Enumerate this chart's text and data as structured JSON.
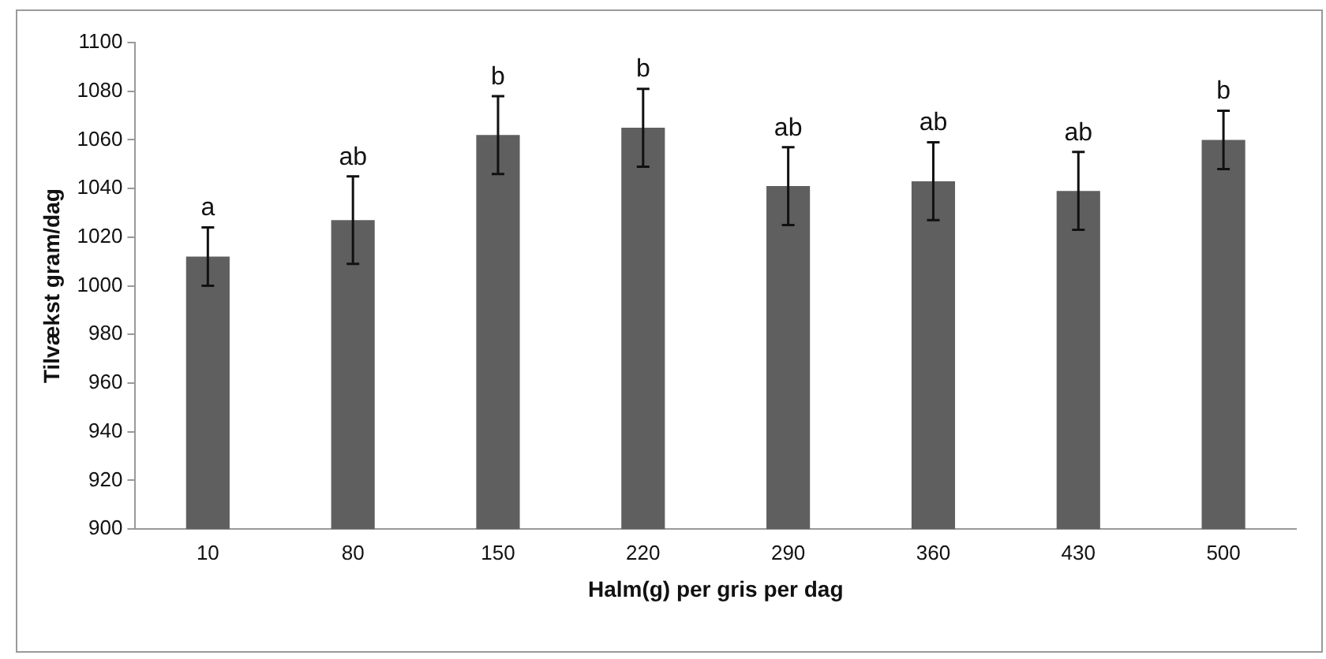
{
  "chart_data": {
    "type": "bar",
    "xlabel": "Halm(g) per gris per dag",
    "ylabel": "Tilvækst gram/dag",
    "categories": [
      "10",
      "80",
      "150",
      "220",
      "290",
      "360",
      "430",
      "500"
    ],
    "values": [
      1012,
      1027,
      1062,
      1065,
      1041,
      1043,
      1039,
      1060
    ],
    "errors": [
      [
        1000,
        1024
      ],
      [
        1009,
        1045
      ],
      [
        1046,
        1078
      ],
      [
        1049,
        1081
      ],
      [
        1025,
        1057
      ],
      [
        1027,
        1059
      ],
      [
        1023,
        1055
      ],
      [
        1048,
        1072
      ]
    ],
    "color": "#5f5f5f",
    "ylim": [
      900,
      1100
    ],
    "yticks": [
      900,
      920,
      940,
      960,
      980,
      1000,
      1020,
      1040,
      1060,
      1080,
      1100
    ],
    "grid": false,
    "legend": false,
    "annotations": [
      {
        "text": "a",
        "x": "10",
        "y": 1024
      },
      {
        "text": "ab",
        "x": "80",
        "y": 1045
      },
      {
        "text": "b",
        "x": "150",
        "y": 1078
      },
      {
        "text": "b",
        "x": "220",
        "y": 1081
      },
      {
        "text": "ab",
        "x": "290",
        "y": 1057
      },
      {
        "text": "ab",
        "x": "360",
        "y": 1059
      },
      {
        "text": "ab",
        "x": "430",
        "y": 1055
      },
      {
        "text": "b",
        "x": "500",
        "y": 1072
      }
    ]
  }
}
